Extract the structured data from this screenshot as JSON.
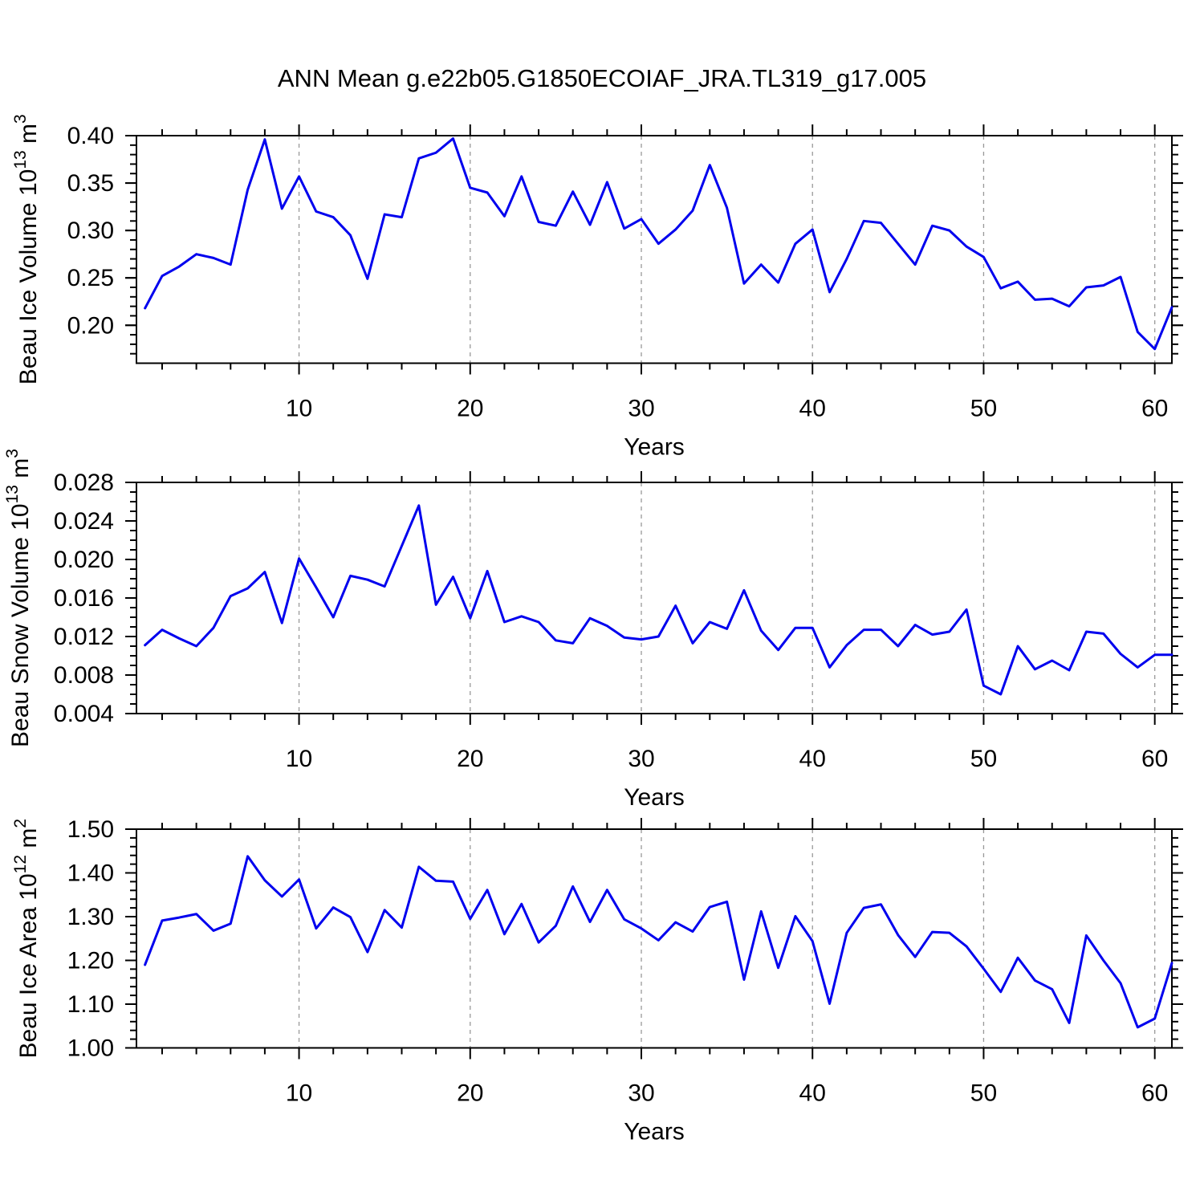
{
  "title": "ANN Mean g.e22b05.G1850ECOIAF_JRA.TL319_g17.005",
  "colors": {
    "line": "#0000EE",
    "grid": "#999999",
    "axis": "#000000",
    "background": "#FFFFFF"
  },
  "chart_data": [
    {
      "type": "line",
      "name": "ice-volume",
      "ylabel": {
        "base": "Beau Ice Volume 10",
        "exp": "13",
        "unit": " m",
        "unit_exp": "3"
      },
      "xlabel": "Years",
      "xlim": [
        0.5,
        61
      ],
      "xticks": [
        10,
        20,
        30,
        40,
        50,
        60
      ],
      "x_minor_step": 2,
      "grid_x": [
        10,
        20,
        30,
        40,
        50,
        60
      ],
      "ylim": [
        0.16,
        0.4
      ],
      "y_minor_step": 0.01,
      "yticks": [
        {
          "v": 0.4,
          "label": "0.40"
        },
        {
          "v": 0.35,
          "label": "0.35"
        },
        {
          "v": 0.3,
          "label": "0.30"
        },
        {
          "v": 0.25,
          "label": "0.25"
        },
        {
          "v": 0.2,
          "label": "0.20"
        }
      ],
      "years_start": 1,
      "values": [
        0.218,
        0.252,
        0.262,
        0.275,
        0.271,
        0.264,
        0.343,
        0.396,
        0.323,
        0.357,
        0.32,
        0.314,
        0.295,
        0.249,
        0.317,
        0.314,
        0.376,
        0.382,
        0.397,
        0.345,
        0.34,
        0.315,
        0.357,
        0.309,
        0.305,
        0.341,
        0.306,
        0.351,
        0.302,
        0.312,
        0.286,
        0.301,
        0.321,
        0.369,
        0.324,
        0.244,
        0.264,
        0.245,
        0.286,
        0.301,
        0.235,
        0.27,
        0.31,
        0.308,
        0.286,
        0.264,
        0.305,
        0.3,
        0.283,
        0.272,
        0.239,
        0.246,
        0.227,
        0.228,
        0.22,
        0.24,
        0.242,
        0.251,
        0.193,
        0.175,
        0.219
      ]
    },
    {
      "type": "line",
      "name": "snow-volume",
      "ylabel": {
        "base": "Beau Snow Volume 10",
        "exp": "13",
        "unit": " m",
        "unit_exp": "3"
      },
      "xlabel": "Years",
      "xlim": [
        0.5,
        61
      ],
      "xticks": [
        10,
        20,
        30,
        40,
        50,
        60
      ],
      "x_minor_step": 2,
      "grid_x": [
        10,
        20,
        30,
        40,
        50,
        60
      ],
      "ylim": [
        0.004,
        0.028
      ],
      "y_minor_step": 0.001,
      "yticks": [
        {
          "v": 0.028,
          "label": "0.028"
        },
        {
          "v": 0.024,
          "label": "0.024"
        },
        {
          "v": 0.02,
          "label": "0.020"
        },
        {
          "v": 0.016,
          "label": "0.016"
        },
        {
          "v": 0.012,
          "label": "0.012"
        },
        {
          "v": 0.008,
          "label": "0.008"
        },
        {
          "v": 0.004,
          "label": "0.004"
        }
      ],
      "years_start": 1,
      "values": [
        0.0111,
        0.0127,
        0.0118,
        0.011,
        0.0129,
        0.0162,
        0.017,
        0.0187,
        0.0134,
        0.0201,
        0.0171,
        0.014,
        0.0183,
        0.0179,
        0.0172,
        0.0214,
        0.0256,
        0.0153,
        0.0182,
        0.0139,
        0.0188,
        0.0135,
        0.0141,
        0.0135,
        0.0116,
        0.0113,
        0.0139,
        0.0131,
        0.0119,
        0.0117,
        0.012,
        0.0152,
        0.0113,
        0.0135,
        0.0128,
        0.0168,
        0.0126,
        0.0106,
        0.0129,
        0.0129,
        0.0088,
        0.0111,
        0.0127,
        0.0127,
        0.011,
        0.0132,
        0.0122,
        0.0125,
        0.0148,
        0.0069,
        0.006,
        0.011,
        0.0086,
        0.0095,
        0.0085,
        0.0125,
        0.0123,
        0.0102,
        0.0088,
        0.0101,
        0.0101
      ]
    },
    {
      "type": "line",
      "name": "ice-area",
      "ylabel": {
        "base": "Beau Ice Area 10",
        "exp": "12",
        "unit": " m",
        "unit_exp": "2"
      },
      "xlabel": "Years",
      "xlim": [
        0.5,
        61
      ],
      "xticks": [
        10,
        20,
        30,
        40,
        50,
        60
      ],
      "x_minor_step": 2,
      "grid_x": [
        10,
        20,
        30,
        40,
        50,
        60
      ],
      "ylim": [
        1.0,
        1.5
      ],
      "y_minor_step": 0.02,
      "yticks": [
        {
          "v": 1.5,
          "label": "1.50"
        },
        {
          "v": 1.4,
          "label": "1.40"
        },
        {
          "v": 1.3,
          "label": "1.30"
        },
        {
          "v": 1.2,
          "label": "1.20"
        },
        {
          "v": 1.1,
          "label": "1.10"
        },
        {
          "v": 1.0,
          "label": "1.00"
        }
      ],
      "years_start": 1,
      "values": [
        1.19,
        1.291,
        1.298,
        1.306,
        1.268,
        1.284,
        1.438,
        1.383,
        1.346,
        1.385,
        1.273,
        1.321,
        1.299,
        1.219,
        1.315,
        1.275,
        1.414,
        1.382,
        1.38,
        1.295,
        1.361,
        1.26,
        1.329,
        1.241,
        1.279,
        1.369,
        1.288,
        1.361,
        1.294,
        1.273,
        1.246,
        1.287,
        1.266,
        1.322,
        1.334,
        1.156,
        1.312,
        1.183,
        1.301,
        1.244,
        1.101,
        1.263,
        1.32,
        1.328,
        1.258,
        1.208,
        1.265,
        1.263,
        1.232,
        1.181,
        1.128,
        1.206,
        1.154,
        1.134,
        1.057,
        1.257,
        1.2,
        1.148,
        1.047,
        1.067,
        1.194
      ]
    }
  ]
}
